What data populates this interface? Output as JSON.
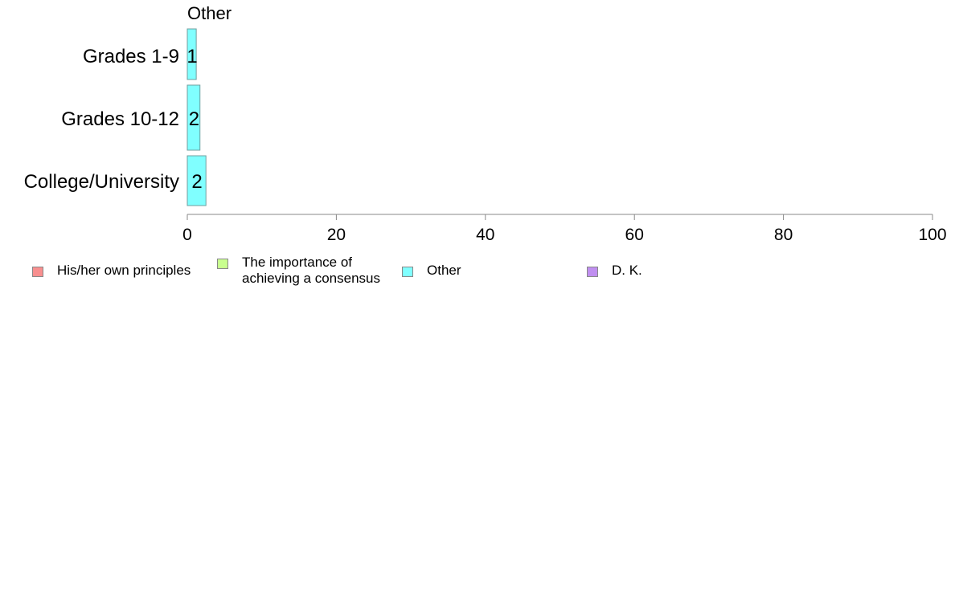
{
  "chart_data": {
    "type": "bar",
    "orientation": "horizontal",
    "title": "Other",
    "categories": [
      "Grades 1-9",
      "Grades 10-12",
      "College/University"
    ],
    "series": [
      {
        "name": "Other",
        "values": [
          1.2,
          1.7,
          2.5
        ],
        "data_labels": [
          "1",
          "2",
          "2"
        ],
        "color": "#80ffff"
      }
    ],
    "xlim": [
      0,
      100
    ],
    "xticks": [
      "0",
      "20",
      "40",
      "60",
      "80",
      "100"
    ],
    "legend_position": "bottom",
    "grid": false
  },
  "legend": {
    "items": [
      {
        "label": "His/her own principles",
        "color": "#f88f8f"
      },
      {
        "label": "The importance of achieving a consensus",
        "color": "#c9ff8f"
      },
      {
        "label": "Other",
        "color": "#80ffff"
      },
      {
        "label": "D. K.",
        "color": "#c08ff0"
      }
    ]
  }
}
